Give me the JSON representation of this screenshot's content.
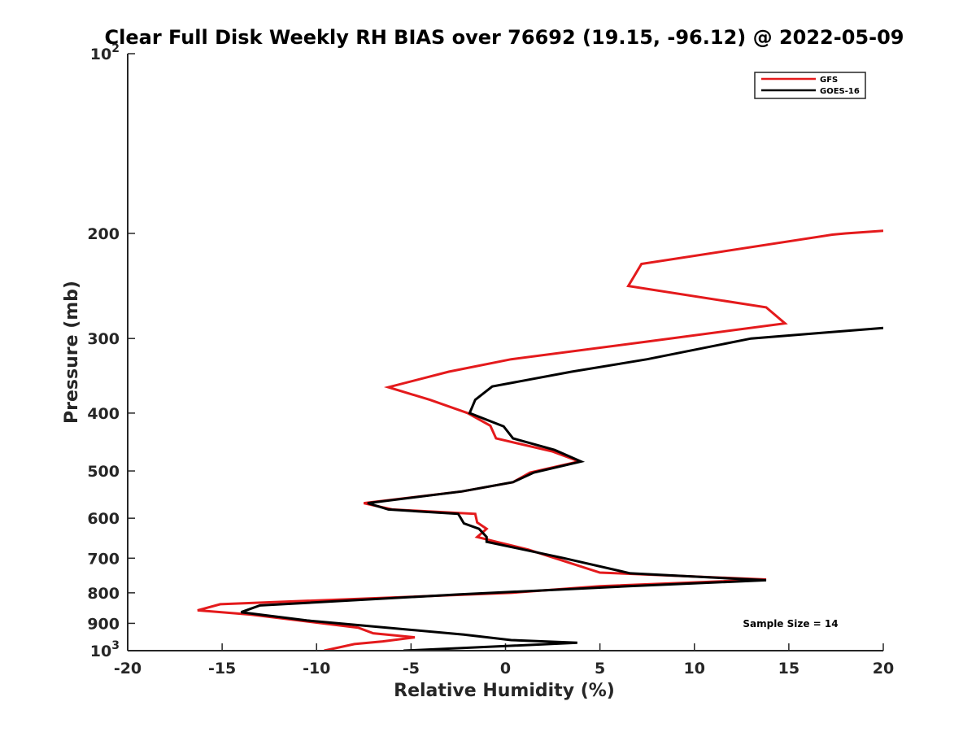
{
  "chart_data": {
    "type": "line",
    "title": "Clear Full Disk Weekly RH BIAS over 76692 (19.15, -96.12) @ 2022-05-09",
    "xlabel": "Relative Humidity (%)",
    "ylabel": "Pressure (mb)",
    "xlim": [
      -20,
      20
    ],
    "ylim": [
      100,
      1000
    ],
    "yscale": "log",
    "y_reversed": true,
    "x_ticks": [
      -20,
      -15,
      -10,
      -5,
      0,
      5,
      10,
      15,
      20
    ],
    "x_tick_labels": [
      "-20",
      "-15",
      "-10",
      "-5",
      "0",
      "5",
      "10",
      "15",
      "20"
    ],
    "y_ticks": [
      100,
      200,
      300,
      400,
      500,
      600,
      700,
      800,
      900,
      1000
    ],
    "y_tick_labels": [
      {
        "base": "10",
        "exp": "2"
      },
      {
        "base": "200",
        "exp": ""
      },
      {
        "base": "300",
        "exp": ""
      },
      {
        "base": "400",
        "exp": ""
      },
      {
        "base": "500",
        "exp": ""
      },
      {
        "base": "600",
        "exp": ""
      },
      {
        "base": "700",
        "exp": ""
      },
      {
        "base": "800",
        "exp": ""
      },
      {
        "base": "900",
        "exp": ""
      },
      {
        "base": "10",
        "exp": "3"
      }
    ],
    "legend_position": "top-right",
    "annotation": "Sample Size = 14",
    "series": [
      {
        "name": "GFS",
        "color": "#e41a1c",
        "points": [
          [
            20.0,
            198
          ],
          [
            18.0,
            200
          ],
          [
            17.3,
            201
          ],
          [
            7.2,
            225
          ],
          [
            6.5,
            245
          ],
          [
            13.8,
            266
          ],
          [
            14.8,
            283
          ],
          [
            7.7,
            303
          ],
          [
            0.3,
            325
          ],
          [
            -3.0,
            341
          ],
          [
            -6.2,
            362
          ],
          [
            -4.0,
            380
          ],
          [
            -2.0,
            400
          ],
          [
            -0.8,
            420
          ],
          [
            -0.5,
            441
          ],
          [
            2.5,
            464
          ],
          [
            3.9,
            482
          ],
          [
            1.3,
            503
          ],
          [
            0.4,
            522
          ],
          [
            -2.3,
            541
          ],
          [
            -7.5,
            566
          ],
          [
            -6.0,
            580
          ],
          [
            -1.6,
            590
          ],
          [
            -1.5,
            610
          ],
          [
            -1.0,
            625
          ],
          [
            -1.5,
            645
          ],
          [
            -0.5,
            657
          ],
          [
            1.2,
            677
          ],
          [
            5.0,
            740
          ],
          [
            13.8,
            760
          ],
          [
            5.0,
            780
          ],
          [
            0.3,
            800
          ],
          [
            -15.1,
            836
          ],
          [
            -16.3,
            856
          ],
          [
            -13.5,
            870
          ],
          [
            -7.8,
            915
          ],
          [
            -7.0,
            935
          ],
          [
            -4.8,
            950
          ],
          [
            -6.5,
            965
          ],
          [
            -8.0,
            975
          ],
          [
            -9.6,
            1000
          ]
        ]
      },
      {
        "name": "GOES-16",
        "color": "#000000",
        "points": [
          [
            20.0,
            288
          ],
          [
            17.0,
            293
          ],
          [
            13.0,
            300
          ],
          [
            7.5,
            325
          ],
          [
            3.5,
            341
          ],
          [
            -0.7,
            361
          ],
          [
            -1.6,
            380
          ],
          [
            -1.9,
            400
          ],
          [
            -0.1,
            421
          ],
          [
            0.4,
            441
          ],
          [
            2.6,
            461
          ],
          [
            4.0,
            482
          ],
          [
            1.5,
            503
          ],
          [
            0.4,
            522
          ],
          [
            -2.3,
            541
          ],
          [
            -7.3,
            566
          ],
          [
            -6.2,
            580
          ],
          [
            -2.5,
            590
          ],
          [
            -2.2,
            612
          ],
          [
            -1.4,
            625
          ],
          [
            -1.0,
            645
          ],
          [
            -1.0,
            657
          ],
          [
            3.1,
            700
          ],
          [
            6.6,
            742
          ],
          [
            13.8,
            762
          ],
          [
            6.5,
            780
          ],
          [
            -2.5,
            805
          ],
          [
            -13.0,
            840
          ],
          [
            -14.0,
            862
          ],
          [
            -10.5,
            890
          ],
          [
            -2.2,
            940
          ],
          [
            0.3,
            960
          ],
          [
            3.8,
            970
          ],
          [
            -5.4,
            1000
          ]
        ]
      }
    ]
  }
}
